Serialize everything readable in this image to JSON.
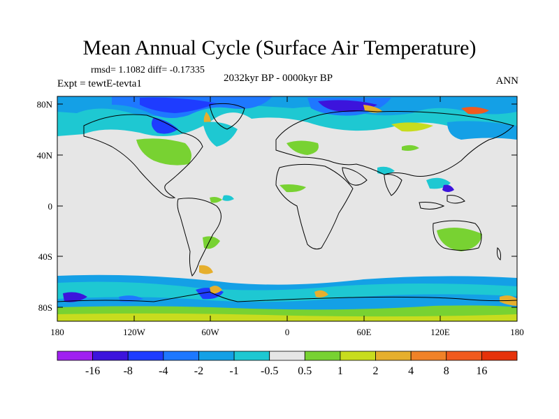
{
  "title": "Mean Annual Cycle (Surface Air Temperature)",
  "stats": "rmsd= 1.1082 diff= -0.17335",
  "experiment": "Expt = tewtE-tevta1",
  "period": "2032kyr BP - 0000kyr BP",
  "season": "ANN",
  "lat_labels": [
    "80N",
    "40N",
    "0",
    "40S",
    "80S"
  ],
  "lon_labels": [
    "180",
    "120W",
    "60W",
    "0",
    "60E",
    "120E",
    "180"
  ],
  "colorbar": {
    "labels": [
      "-16",
      "-8",
      "-4",
      "-2",
      "-1",
      "-0.5",
      "0.5",
      "1",
      "2",
      "4",
      "8",
      "16"
    ],
    "colors": [
      "#a020f0",
      "#3c14dc",
      "#1e3cff",
      "#1e78ff",
      "#14a0e6",
      "#1ec8d2",
      "#e6e6e6",
      "#78d232",
      "#c8dc1e",
      "#e6af2d",
      "#f08228",
      "#f05a1e",
      "#e6320a"
    ]
  },
  "palette": {
    "ocean_neutral": "#e6e6e6",
    "coast": "#000000"
  }
}
